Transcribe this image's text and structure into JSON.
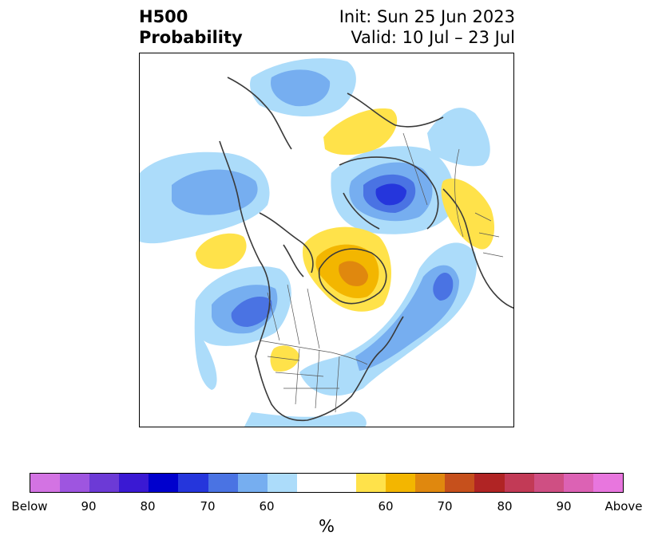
{
  "title": {
    "left_line1": "H500",
    "left_line2": "Probability",
    "right_line1": "Init: Sun 25 Jun 2023",
    "right_line2": "Valid: 10 Jul – 23 Jul"
  },
  "colorbar": {
    "colors": [
      "#d373e3",
      "#9e55e0",
      "#6c3ad6",
      "#3a19d3",
      "#0000cd",
      "#2536dc",
      "#4a73e3",
      "#76aef0",
      "#acdcfa",
      "#ffffff",
      "#ffffff",
      "#ffe24a",
      "#f3b600",
      "#e0880e",
      "#c6501c",
      "#b02424",
      "#c23a56",
      "#cf4f83",
      "#dc62b4",
      "#e876de"
    ],
    "tick_labels": [
      "Below",
      "90",
      "80",
      "70",
      "60",
      "60",
      "70",
      "80",
      "90",
      "Above"
    ],
    "unit": "%"
  },
  "map": {
    "projection": "north-polar-stereographic",
    "fill_colors": {
      "below_light": "#acdcfa",
      "below_medium": "#76aef0",
      "below_strong": "#4a73e3",
      "below_deep": "#2536dc",
      "above_light": "#ffe24a",
      "above_medium": "#f3b600",
      "above_strong": "#e0880e"
    },
    "coastline_color": "#3a3a3a",
    "border_color": "#555555"
  }
}
